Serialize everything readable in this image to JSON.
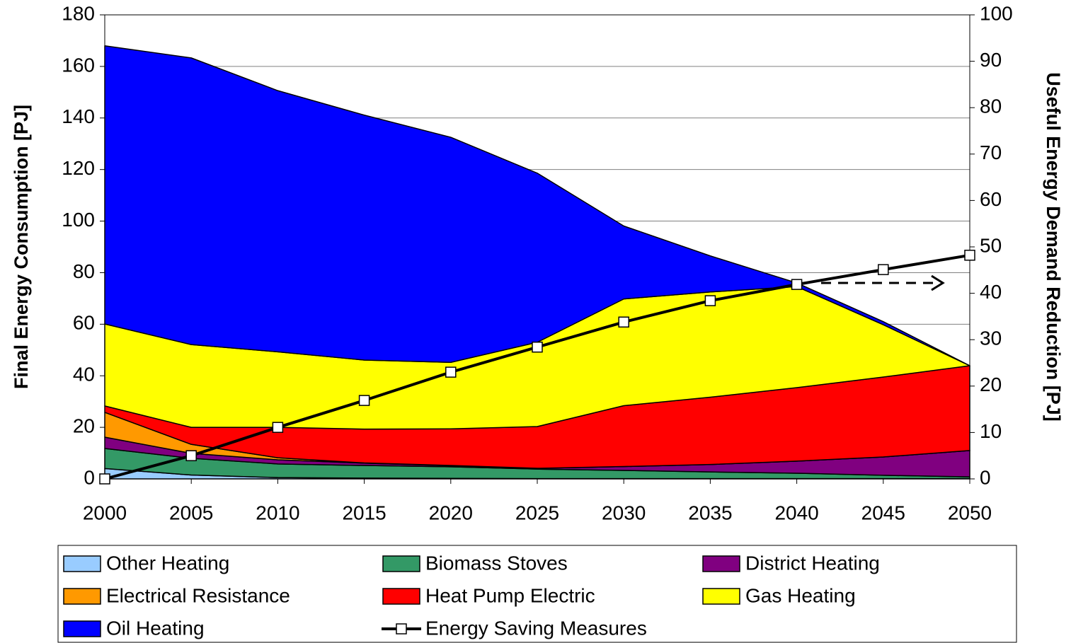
{
  "chart_data": {
    "type": "area",
    "y_label": "Final Energy Consumption [PJ]",
    "y2_label": "Useful Energy Demand Reduction [PJ]",
    "x": [
      2000,
      2005,
      2010,
      2015,
      2020,
      2025,
      2030,
      2035,
      2040,
      2045,
      2050
    ],
    "xlim": [
      2000,
      2050
    ],
    "xticks": [
      2000,
      2005,
      2010,
      2015,
      2020,
      2025,
      2030,
      2035,
      2040,
      2045,
      2050
    ],
    "ylim": [
      0,
      180
    ],
    "yticks": [
      0,
      20,
      40,
      60,
      80,
      100,
      120,
      140,
      160,
      180
    ],
    "y2lim": [
      0,
      100
    ],
    "y2ticks": [
      0,
      10,
      20,
      30,
      40,
      50,
      60,
      70,
      80,
      90,
      100
    ],
    "grid": true,
    "stacked": true,
    "legend": "bottom",
    "series": [
      {
        "name": "Other Heating",
        "color": "#99ccff",
        "values": [
          4,
          1.5,
          0.5,
          0.3,
          0.2,
          0.1,
          0.1,
          0.1,
          0.1,
          0.1,
          0.1
        ]
      },
      {
        "name": "Biomass Stoves",
        "color": "#339966",
        "values": [
          7.8,
          6.5,
          5.3,
          4.9,
          4.5,
          3.7,
          3.2,
          2.6,
          2.1,
          1.3,
          0.7
        ]
      },
      {
        "name": "District Heating",
        "color": "#800080",
        "values": [
          4.4,
          1.9,
          1.6,
          0.9,
          0.4,
          0.3,
          1.5,
          2.9,
          4.7,
          7.1,
          10.2
        ]
      },
      {
        "name": "Electrical Resistance",
        "color": "#ff9900",
        "values": [
          9.6,
          3.5,
          0.8,
          0.1,
          0.1,
          0,
          0,
          0,
          0,
          0,
          0
        ]
      },
      {
        "name": "Heat Pump Electric",
        "color": "#ff0000",
        "values": [
          2.5,
          6.6,
          11.8,
          13.1,
          14.2,
          16.2,
          23.6,
          26.1,
          28.5,
          31,
          32.9
        ]
      },
      {
        "name": "Gas Heating",
        "color": "#ffff00",
        "values": [
          31.8,
          32.1,
          29.3,
          26.8,
          25.8,
          32.7,
          41.4,
          40.8,
          39.2,
          20.3,
          0
        ]
      },
      {
        "name": "Oil Heating",
        "color": "#0000ff",
        "values": [
          107.9,
          111.2,
          101.3,
          95,
          87.3,
          65.6,
          28.3,
          14,
          1.4,
          1.2,
          0
        ]
      },
      {
        "name": "Energy Saving Measures",
        "color": "#000000",
        "type": "line",
        "axis": "y2",
        "values": [
          0,
          5,
          11.1,
          16.9,
          23,
          28.4,
          33.8,
          38.4,
          41.9,
          45.1,
          48.2
        ]
      }
    ]
  }
}
